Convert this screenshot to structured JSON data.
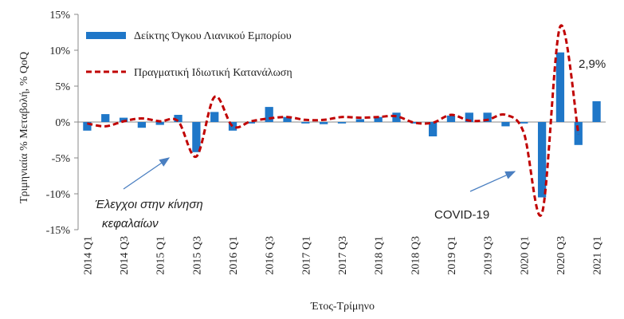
{
  "colors": {
    "bar": "#1f77c8",
    "line": "#c00000",
    "arrow": "#4a7fc1"
  },
  "chart_data": {
    "type": "bar",
    "xlabel": "Έτος-Τρίμηνο",
    "ylabel": "Τριμηνιαία % Μεταβολή, % QoQ",
    "ylim": [
      -15,
      15
    ],
    "yticks": [
      "15%",
      "10%",
      "5%",
      "0%",
      "-5%",
      "-10%",
      "-15%"
    ],
    "ytick_values": [
      15,
      10,
      5,
      0,
      -5,
      -10,
      -15
    ],
    "categories": [
      "2014 Q1",
      "2014 Q2",
      "2014 Q3",
      "2014 Q4",
      "2015 Q1",
      "2015 Q2",
      "2015 Q3",
      "2015 Q4",
      "2016 Q1",
      "2016 Q2",
      "2016 Q3",
      "2016 Q4",
      "2017 Q1",
      "2017 Q2",
      "2017 Q3",
      "2017 Q4",
      "2018 Q1",
      "2018 Q2",
      "2018 Q3",
      "2018 Q4",
      "2019 Q1",
      "2019 Q2",
      "2019 Q3",
      "2019 Q4",
      "2020 Q1",
      "2020 Q2",
      "2020 Q3",
      "2020 Q4",
      "2021 Q1"
    ],
    "tick_labels": [
      "2014 Q1",
      "2014 Q3",
      "2015 Q1",
      "2015 Q3",
      "2016 Q1",
      "2016 Q3",
      "2017 Q1",
      "2017 Q3",
      "2018 Q1",
      "2018 Q3",
      "2019 Q1",
      "2019 Q3",
      "2020 Q1",
      "2020 Q3",
      "2021 Q1"
    ],
    "legend_placement": "top-left",
    "series": [
      {
        "name": "Δείκτης Όγκου Λιανικού Εμπορίου",
        "kind": "bar",
        "values": [
          -1.2,
          1.1,
          0.6,
          -0.8,
          -0.4,
          1.0,
          -4.2,
          1.4,
          -1.2,
          -0.2,
          2.1,
          0.7,
          -0.2,
          -0.3,
          -0.2,
          0.4,
          0.7,
          1.3,
          -0.2,
          -2.0,
          0.9,
          1.3,
          1.3,
          -0.6,
          -0.2,
          -10.5,
          9.7,
          -3.2,
          2.9
        ]
      },
      {
        "name": "Πραγματική Ιδιωτική Κατανάλωση",
        "kind": "line",
        "values": [
          -0.2,
          -0.6,
          0.1,
          0.5,
          0.1,
          0.1,
          -4.8,
          3.5,
          -0.6,
          0.1,
          0.5,
          0.7,
          0.3,
          0.3,
          0.7,
          0.6,
          0.7,
          0.8,
          -0.1,
          -0.1,
          1.0,
          0.2,
          0.3,
          1.0,
          -1.5,
          -12.7,
          13.3,
          -1.7,
          null
        ]
      }
    ],
    "annotations": {
      "last_value": "2,9%",
      "capital_controls_line1": "Έλεγχοι στην κίνηση",
      "capital_controls_line2": "κεφαλαίων",
      "covid": "COVID-19"
    }
  }
}
